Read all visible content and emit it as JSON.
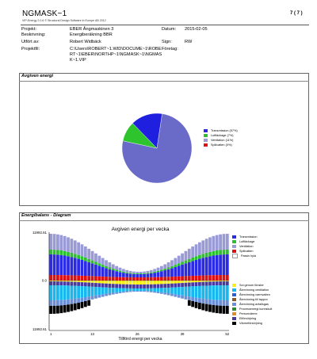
{
  "header": {
    "title": "NGMASK~1",
    "subtitle": "VIP-Energy 2.0.6 © Structural Design Software in Europe AB 2012",
    "page": "7 ( 7 )"
  },
  "info": {
    "projekt_label": "Projekt:",
    "projekt_value": "EBER Ångmaskinen 3",
    "beskrivning_label": "Beskrivning:",
    "beskrivning_value": "Energiberäkning BBR",
    "utfort_label": "Utfört av:",
    "utfort_value": "Robert Widbäck",
    "projektfil_label": "Projektfil:",
    "projektfil_lines": [
      "C:\\Users\\ROBERT~1.WID\\DOCUME~1\\ROBE",
      "RT~1\\EBER\\NORTHP~1\\NGMASK~1\\NGMAS",
      "K~1.VIP"
    ],
    "datum_label": "Datum:",
    "datum_value": "2015-02-05",
    "sign_label": "Sign:",
    "sign_value": "RW",
    "foretag_label": "Företag:",
    "foretag_value": ""
  },
  "pie_section": {
    "title": "Avgiven energi",
    "legend": [
      {
        "label": "Transmission (57%)",
        "color": "#7b7bd1"
      },
      {
        "label": "Luftläckage (7%)",
        "color": "#2dc42d"
      },
      {
        "label": "Ventilation (11%)",
        "color": "#8f8fa8"
      },
      {
        "label": "Spillvatten (0%)",
        "color": "#e01010"
      },
      {
        "label": "",
        "color": "#ffffff"
      }
    ]
  },
  "chart_section": {
    "title": "Energibalans - Diagram"
  },
  "chart_data": [
    {
      "type": "pie",
      "series": [
        {
          "name": "Transmission",
          "value": 57,
          "color": "#5a5ac8"
        },
        {
          "name": "Luftläckage",
          "value": 7,
          "color": "#2dc42d"
        },
        {
          "name": "Ventilation",
          "value": 11,
          "color": "#1f1fe0"
        },
        {
          "name": "Spillvatten",
          "value": 0,
          "color": "#e01010"
        }
      ]
    },
    {
      "type": "bar",
      "title": "Avgiven energi per vecka",
      "xlabel": "Tillförd energi per vecka",
      "yticks": [
        "11992.61",
        "0.0",
        "11992.61"
      ],
      "xticks": [
        "1",
        "13",
        "26",
        "39",
        "52"
      ],
      "ylim": [
        -11992.61,
        11992.61
      ],
      "weeks": 52,
      "legend_top": [
        {
          "label": "Transmission",
          "color": "#2b2be6"
        },
        {
          "label": "Luftläckage",
          "color": "#2ec02e"
        },
        {
          "label": "Ventilation",
          "color": "#9a9ad6"
        },
        {
          "label": "Spillvatten",
          "color": "#e01010"
        },
        {
          "label": "Passiv kyla",
          "color": "#ffffff"
        }
      ],
      "legend_bottom": [
        {
          "label": "Sol genom fönster",
          "color": "#f7f018"
        },
        {
          "label": "Återvinning ventilation",
          "color": "#19b7f0"
        },
        {
          "label": "Återvinning varmvatten",
          "color": "#2b5fd6"
        },
        {
          "label": "Återvinning till tappvv",
          "color": "#8a5a2a"
        },
        {
          "label": "Återvinning avfallsgas",
          "color": "#6a8fd8"
        },
        {
          "label": "Processenergi kunnskult",
          "color": "#2e8b2e"
        },
        {
          "label": "Personvärme",
          "color": "#e08a2a"
        },
        {
          "label": "Elförsörjning",
          "color": "#4a3aa0"
        },
        {
          "label": "Värmeförsörjning",
          "color": "#000000"
        }
      ]
    }
  ]
}
